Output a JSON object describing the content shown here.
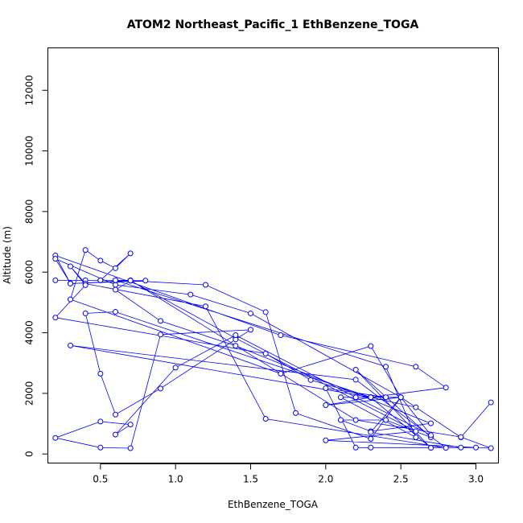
{
  "chart_data": {
    "type": "line",
    "title": "ATOM2 Northeast_Pacific_1 EthBenzene_TOGA",
    "xlabel": "EthBenzene_TOGA",
    "ylabel": "Altitude (m)",
    "xlim": [
      0.15,
      3.15
    ],
    "ylim": [
      -300,
      13400
    ],
    "xticks": [
      "0.5",
      "1.0",
      "1.5",
      "2.0",
      "2.5",
      "3.0"
    ],
    "yticks": [
      "0",
      "2000",
      "4000",
      "6000",
      "8000",
      "10000",
      "12000"
    ],
    "grid": false,
    "color": "#0000ff",
    "marker": "open-circle",
    "series": [
      {
        "x": [
          3.1,
          2.9,
          2.5,
          2.3,
          2.6,
          2.3,
          2.8,
          2.6,
          1.7,
          0.2,
          0.3,
          0.2,
          0.6,
          1.1,
          1.5,
          2.5,
          2.3,
          1.7,
          0.3,
          0.4,
          0.5,
          0.6,
          0.7,
          0.5,
          0.2,
          0.5,
          0.4,
          0.6,
          0.7,
          2.2,
          2.9,
          3.1,
          2.0,
          2.6,
          1.4,
          0.7,
          0.8,
          0.3,
          0.7,
          0.6,
          0.9,
          1.4,
          2.7,
          2.3,
          2.1,
          2.4,
          2.7,
          2.2,
          2.7,
          2.3,
          0.3,
          2.2,
          2.8,
          1.6,
          1.2,
          0.4,
          0.3,
          0.4,
          0.2,
          1.6,
          1.9,
          2.3,
          0.6,
          0.4,
          0.5,
          0.6,
          0.9,
          1.4,
          1.5,
          0.9,
          0.7,
          0.5,
          0.2,
          0.5,
          0.7,
          0.6,
          1.0,
          1.4,
          2.2,
          2.7,
          2.5,
          2.3,
          1.8,
          1.6,
          1.2,
          0.7,
          0.6,
          2.4,
          2.6,
          2.1,
          2.5,
          2.3,
          2.0,
          2.5,
          2.3,
          2.9,
          3.0,
          2.3,
          2.2,
          2.0,
          2.4,
          2.3
        ],
        "y": [
          1700,
          550,
          1870,
          1870,
          1540,
          1870,
          2190,
          2880,
          3920,
          6550,
          5630,
          6440,
          5580,
          5260,
          4640,
          1870,
          3560,
          2650,
          5100,
          6730,
          6380,
          6130,
          6620,
          5730,
          5730,
          5730,
          5730,
          5730,
          5730,
          1120,
          560,
          190,
          450,
          750,
          3820,
          5720,
          5720,
          5620,
          5720,
          5420,
          4390,
          3570,
          1010,
          750,
          1120,
          1120,
          550,
          2780,
          200,
          1870,
          3580,
          2450,
          200,
          1160,
          4870,
          5620,
          6190,
          5570,
          4500,
          3310,
          2440,
          1870,
          4690,
          4640,
          2650,
          1300,
          2160,
          3780,
          4100,
          3940,
          190,
          210,
          530,
          1070,
          970,
          640,
          2850,
          3920,
          1870,
          620,
          1870,
          500,
          1350,
          4680,
          5580,
          5720,
          5730,
          2880,
          550,
          1870,
          1870,
          1870,
          1610,
          1870,
          720,
          210,
          210,
          210,
          210,
          2170,
          1870,
          1870
        ]
      }
    ]
  }
}
